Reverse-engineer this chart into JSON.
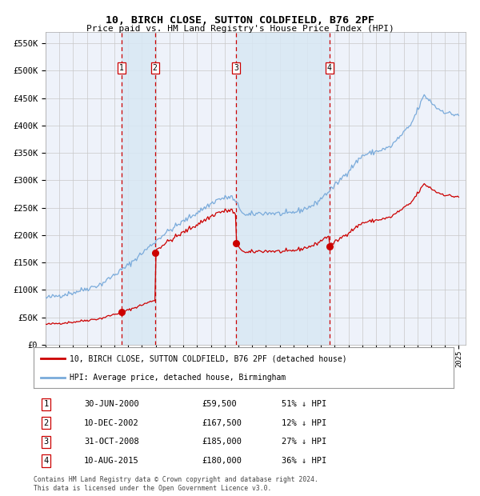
{
  "title": "10, BIRCH CLOSE, SUTTON COLDFIELD, B76 2PF",
  "subtitle": "Price paid vs. HM Land Registry's House Price Index (HPI)",
  "ylim": [
    0,
    570000
  ],
  "yticks": [
    0,
    50000,
    100000,
    150000,
    200000,
    250000,
    300000,
    350000,
    400000,
    450000,
    500000,
    550000
  ],
  "ytick_labels": [
    "£0",
    "£50K",
    "£100K",
    "£150K",
    "£200K",
    "£250K",
    "£300K",
    "£350K",
    "£400K",
    "£450K",
    "£500K",
    "£550K"
  ],
  "xlim_start": 1995.0,
  "xlim_end": 2025.5,
  "background_color": "#ffffff",
  "plot_bg_color": "#eef2fa",
  "grid_color": "#c8c8c8",
  "hpi_line_color": "#7aabdb",
  "price_line_color": "#cc0000",
  "sale_dot_color": "#cc0000",
  "vline_color": "#cc0000",
  "shade_color": "#d8e8f4",
  "sale_points": [
    {
      "date": 2000.5,
      "price": 59500,
      "label": "1"
    },
    {
      "date": 2002.94,
      "price": 167500,
      "label": "2"
    },
    {
      "date": 2008.83,
      "price": 185000,
      "label": "3"
    },
    {
      "date": 2015.61,
      "price": 180000,
      "label": "4"
    }
  ],
  "legend_entries": [
    {
      "label": "10, BIRCH CLOSE, SUTTON COLDFIELD, B76 2PF (detached house)",
      "color": "#cc0000"
    },
    {
      "label": "HPI: Average price, detached house, Birmingham",
      "color": "#7aabdb"
    }
  ],
  "table_rows": [
    {
      "num": "1",
      "date": "30-JUN-2000",
      "price": "£59,500",
      "hpi": "51% ↓ HPI"
    },
    {
      "num": "2",
      "date": "10-DEC-2002",
      "price": "£167,500",
      "hpi": "12% ↓ HPI"
    },
    {
      "num": "3",
      "date": "31-OCT-2008",
      "price": "£185,000",
      "hpi": "27% ↓ HPI"
    },
    {
      "num": "4",
      "date": "10-AUG-2015",
      "price": "£180,000",
      "hpi": "36% ↓ HPI"
    }
  ],
  "footnote": "Contains HM Land Registry data © Crown copyright and database right 2024.\nThis data is licensed under the Open Government Licence v3.0.",
  "hpi_anchors_years": [
    1995.0,
    1997.0,
    1999.0,
    2001.0,
    2003.5,
    2005.0,
    2007.5,
    2008.5,
    2009.5,
    2010.5,
    2011.5,
    2012.5,
    2013.5,
    2014.5,
    2016.0,
    2018.0,
    2020.0,
    2021.5,
    2022.5,
    2023.5,
    2024.5
  ],
  "hpi_anchors_vals": [
    85000,
    95000,
    110000,
    145000,
    200000,
    225000,
    265000,
    270000,
    235000,
    240000,
    240000,
    238000,
    245000,
    255000,
    290000,
    345000,
    360000,
    400000,
    455000,
    430000,
    420000
  ]
}
